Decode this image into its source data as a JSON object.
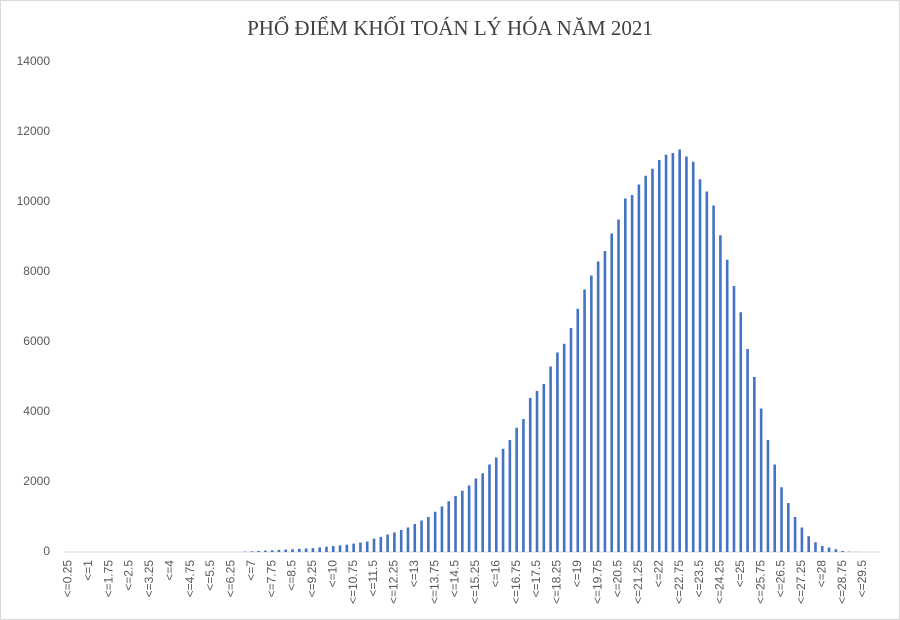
{
  "chart_data": {
    "type": "bar",
    "title": "PHỔ ĐIỂM KHỐI TOÁN LÝ HÓA NĂM 2021",
    "categories": [
      "<=0.25",
      null,
      null,
      "<=1",
      null,
      null,
      "<=1.75",
      null,
      null,
      "<=2.5",
      null,
      null,
      "<=3.25",
      null,
      null,
      "<=4",
      null,
      null,
      "<=4.75",
      null,
      null,
      "<=5.5",
      null,
      null,
      "<=6.25",
      null,
      null,
      "<=7",
      null,
      null,
      "<=7.75",
      null,
      null,
      "<=8.5",
      null,
      null,
      "<=9.25",
      null,
      null,
      "<=10",
      null,
      null,
      "<=10.75",
      null,
      null,
      "<=11.5",
      null,
      null,
      "<=12.25",
      null,
      null,
      "<=13",
      null,
      null,
      "<=13.75",
      null,
      null,
      "<=14.5",
      null,
      null,
      "<=15.25",
      null,
      null,
      "<=16",
      null,
      null,
      "<=16.75",
      null,
      null,
      "<=17.5",
      null,
      null,
      "<=18.25",
      null,
      null,
      "<=19",
      null,
      null,
      "<=19.75",
      null,
      null,
      "<=20.5",
      null,
      null,
      "<=21.25",
      null,
      null,
      "<=22",
      null,
      null,
      "<=22.75",
      null,
      null,
      "<=23.5",
      null,
      null,
      "<=24.25",
      null,
      null,
      "<=25",
      null,
      null,
      "<=25.75",
      null,
      null,
      "<=26.5",
      null,
      null,
      "<=27.25",
      null,
      null,
      "<=28",
      null,
      null,
      "<=28.75",
      null,
      null,
      "<=29.5",
      null,
      null
    ],
    "values": [
      0,
      0,
      0,
      0,
      0,
      0,
      0,
      0,
      0,
      0,
      0,
      0,
      0,
      0,
      0,
      0,
      0,
      0,
      0,
      0,
      0,
      0,
      0,
      0,
      0,
      0,
      10,
      20,
      30,
      40,
      50,
      60,
      70,
      80,
      90,
      100,
      110,
      130,
      150,
      170,
      190,
      210,
      240,
      270,
      300,
      380,
      430,
      500,
      560,
      630,
      700,
      800,
      900,
      1000,
      1150,
      1300,
      1450,
      1600,
      1750,
      1900,
      2100,
      2250,
      2500,
      2700,
      2950,
      3200,
      3550,
      3800,
      4400,
      4600,
      4800,
      5300,
      5700,
      5950,
      6400,
      6950,
      7500,
      7900,
      8300,
      8600,
      9100,
      9500,
      10100,
      10200,
      10500,
      10750,
      10950,
      11200,
      11350,
      11400,
      11500,
      11300,
      11150,
      10650,
      10300,
      9900,
      9050,
      8350,
      7600,
      6850,
      5800,
      5000,
      4100,
      3200,
      2500,
      1850,
      1400,
      1000,
      700,
      450,
      280,
      170,
      130,
      80,
      30,
      10,
      5,
      0,
      0,
      0
    ],
    "color": "#4472c4",
    "ylim": [
      0,
      14000
    ],
    "yticks": [
      0,
      2000,
      4000,
      6000,
      8000,
      10000,
      12000,
      14000
    ]
  }
}
